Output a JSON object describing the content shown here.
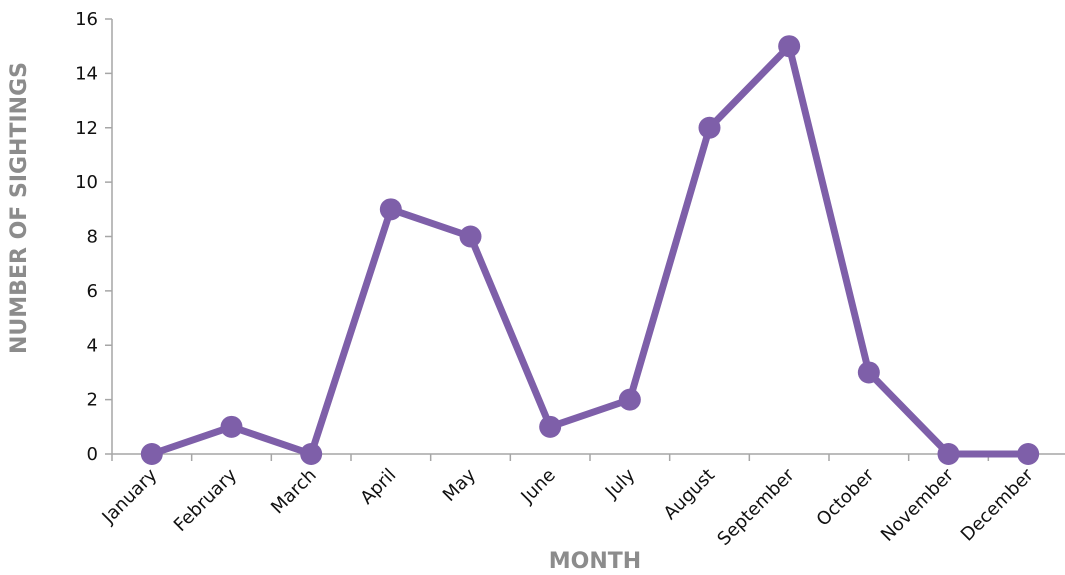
{
  "chart_data": {
    "type": "line",
    "title": "",
    "xlabel": "MONTH",
    "ylabel": "NUMBER OF SIGHTINGS",
    "categories": [
      "January",
      "February",
      "March",
      "April",
      "May",
      "June",
      "July",
      "August",
      "September",
      "October",
      "November",
      "December"
    ],
    "series": [
      {
        "values": [
          0,
          1,
          0,
          9,
          8,
          1,
          2,
          12,
          15,
          3,
          0,
          0
        ],
        "color": "#7e5fa9"
      }
    ],
    "ylim": [
      0,
      16
    ],
    "yticks": [
      "0",
      "2",
      "4",
      "6",
      "8",
      "10",
      "12",
      "14",
      "16"
    ],
    "grid": false,
    "legend": "none",
    "colors": {
      "line": "#7e5fa9",
      "axis": "#a6a6a6",
      "axis_title": "#8c8c8c",
      "tick_text": "#111111"
    }
  }
}
